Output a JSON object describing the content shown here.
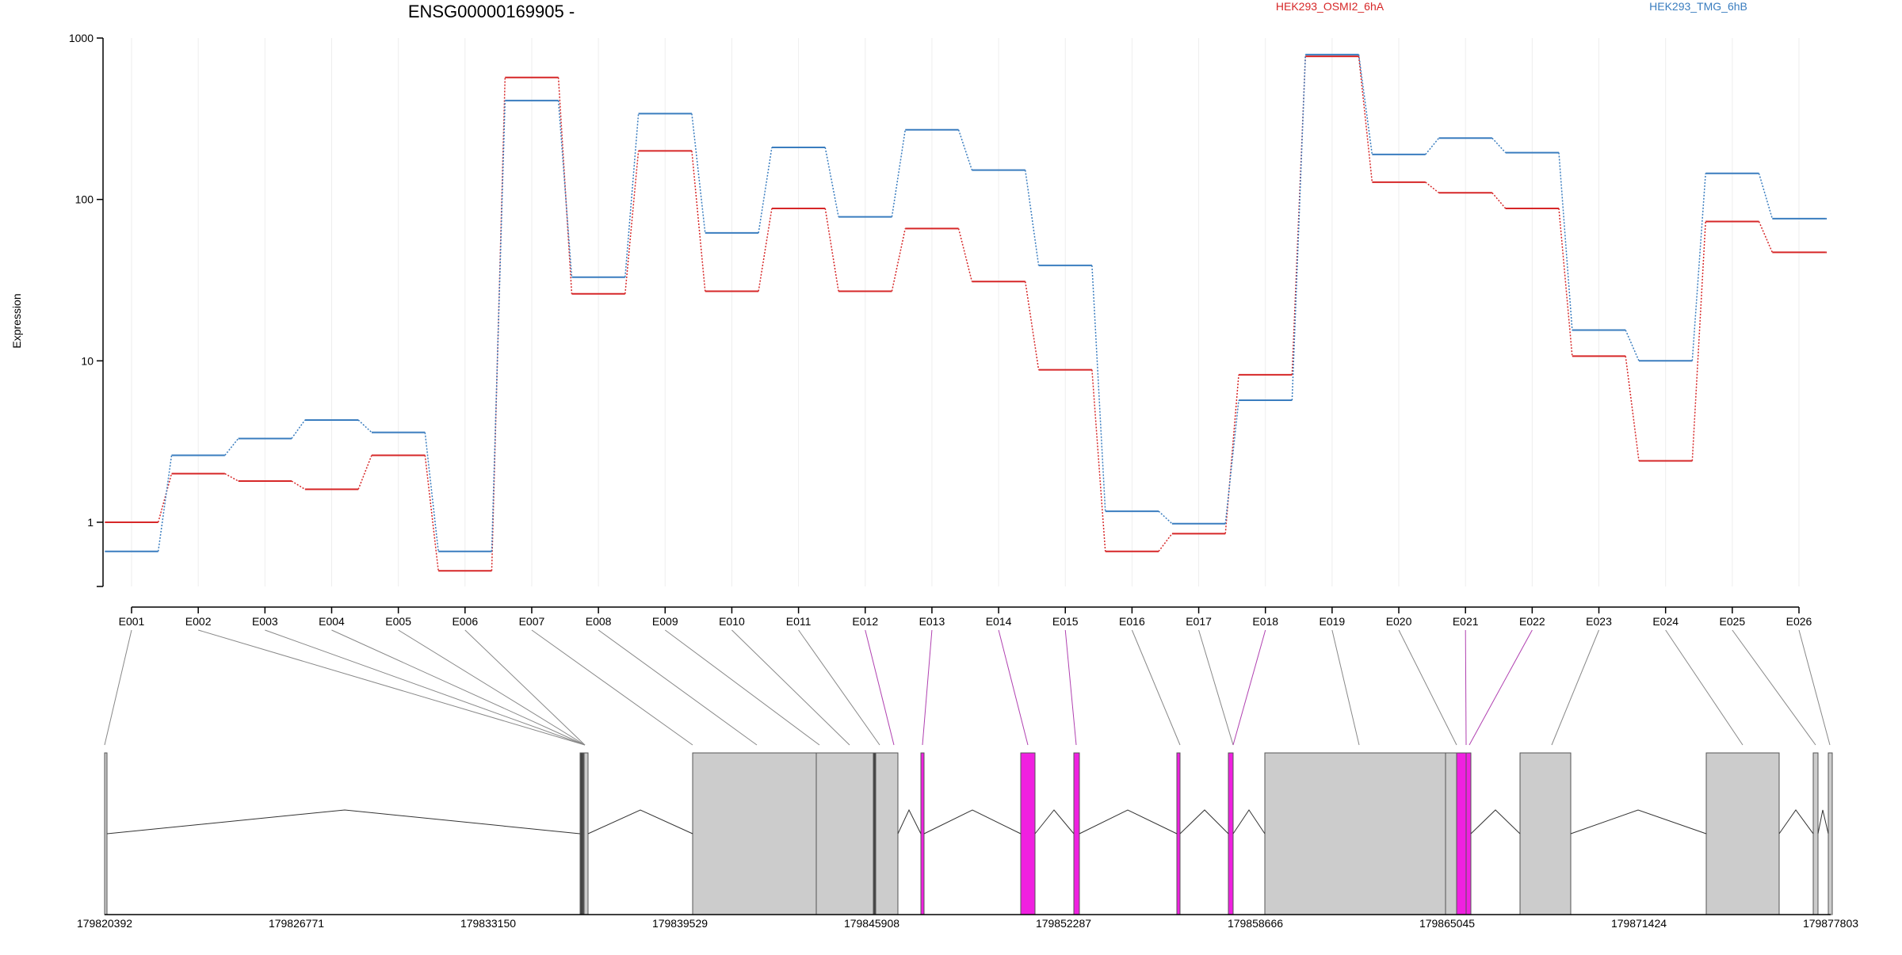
{
  "chart_data": {
    "type": "line",
    "title": "ENSG00000169905 -",
    "ylabel": "Expression",
    "xlabel": "",
    "yscale": "log",
    "ylim": [
      0.4,
      1000
    ],
    "y_ticks": [
      1,
      10,
      100,
      1000
    ],
    "y_tick_labels": [
      "1",
      "10",
      "100",
      "1000"
    ],
    "grid": "vertical",
    "legend_placement": "top",
    "categories": [
      "E001",
      "E002",
      "E003",
      "E004",
      "E005",
      "E006",
      "E007",
      "E008",
      "E009",
      "E010",
      "E011",
      "E012",
      "E013",
      "E014",
      "E015",
      "E016",
      "E017",
      "E018",
      "E019",
      "E020",
      "E021",
      "E022",
      "E023",
      "E024",
      "E025",
      "E026"
    ],
    "series": [
      {
        "name": "HEK293_OSMI2_6hA",
        "color": "#d62728",
        "values": [
          1.0,
          2.0,
          1.8,
          1.6,
          2.6,
          0.5,
          570,
          26,
          200,
          27,
          88,
          27,
          66,
          31,
          8.8,
          0.66,
          0.85,
          8.2,
          770,
          128,
          110,
          88,
          10.7,
          2.4,
          73,
          47
        ]
      },
      {
        "name": "HEK293_TMG_6hB",
        "color": "#3a7dbf",
        "values": [
          0.66,
          2.6,
          3.3,
          4.3,
          3.6,
          0.66,
          410,
          33,
          340,
          62,
          210,
          78,
          270,
          152,
          39,
          1.17,
          0.98,
          5.7,
          790,
          190,
          240,
          195,
          15.5,
          10.0,
          145,
          76
        ]
      }
    ],
    "gene_model": {
      "coord_ticks": [
        "179820392",
        "179826771",
        "179833150",
        "179839529",
        "179845908",
        "179852287",
        "179858666",
        "179865045",
        "179871424",
        "179877803"
      ],
      "highlight_color": "#f020e0",
      "exon_color": "#cccccc"
    }
  }
}
